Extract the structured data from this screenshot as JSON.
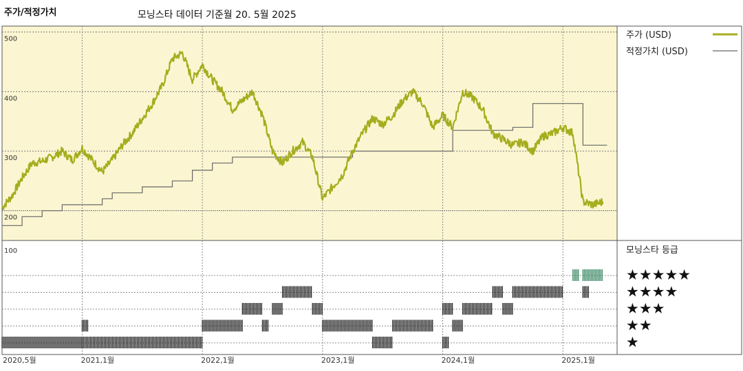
{
  "header": {
    "title": "주가/적정가치",
    "subtitle": "모닝스타 데이터 기준월 20. 5월 2025"
  },
  "legend": {
    "price_label": "주가 (USD)",
    "fair_label": "적정가치 (USD)",
    "rating_title": "모닝스타 등급"
  },
  "colors": {
    "price": "#a5ad1e",
    "fair": "#666666",
    "panel_bg": "#fbf6d1",
    "rating_dark": "#222222",
    "rating_five": "#3d8a66"
  },
  "chart_data": {
    "type": "line",
    "title": "주가/적정가치",
    "ylim": [
      150,
      510
    ],
    "yticks": [
      "500",
      "400",
      "300",
      "200"
    ],
    "xticks": [
      "2020,5월",
      "2021,1월",
      "2022,1월",
      "2023,1월",
      "2024,1월",
      "2025,1월"
    ],
    "xtick_dates": [
      "2020-05",
      "2021-01",
      "2022-01",
      "2023-01",
      "2024-01",
      "2025-01"
    ],
    "x_range": [
      "2020-05",
      "2025-05"
    ],
    "series": [
      {
        "name": "주가 (USD)",
        "points": [
          [
            "2020-05",
            205
          ],
          [
            "2020-06",
            225
          ],
          [
            "2020-07",
            255
          ],
          [
            "2020-08",
            280
          ],
          [
            "2020-09",
            283
          ],
          [
            "2020-10",
            290
          ],
          [
            "2020-11",
            300
          ],
          [
            "2020-12",
            285
          ],
          [
            "2021-01",
            305
          ],
          [
            "2021-02",
            285
          ],
          [
            "2021-03",
            265
          ],
          [
            "2021-04",
            285
          ],
          [
            "2021-05",
            310
          ],
          [
            "2021-06",
            330
          ],
          [
            "2021-07",
            355
          ],
          [
            "2021-08",
            380
          ],
          [
            "2021-09",
            410
          ],
          [
            "2021-10",
            455
          ],
          [
            "2021-11",
            465
          ],
          [
            "2021-12",
            420
          ],
          [
            "2022-01",
            445
          ],
          [
            "2022-02",
            420
          ],
          [
            "2022-03",
            400
          ],
          [
            "2022-04",
            370
          ],
          [
            "2022-05",
            385
          ],
          [
            "2022-06",
            400
          ],
          [
            "2022-07",
            360
          ],
          [
            "2022-08",
            300
          ],
          [
            "2022-09",
            280
          ],
          [
            "2022-10",
            300
          ],
          [
            "2022-11",
            315
          ],
          [
            "2022-12",
            290
          ],
          [
            "2023-01",
            220
          ],
          [
            "2023-02",
            240
          ],
          [
            "2023-03",
            260
          ],
          [
            "2023-04",
            300
          ],
          [
            "2023-05",
            330
          ],
          [
            "2023-06",
            355
          ],
          [
            "2023-07",
            345
          ],
          [
            "2023-08",
            360
          ],
          [
            "2023-09",
            385
          ],
          [
            "2023-10",
            400
          ],
          [
            "2023-11",
            380
          ],
          [
            "2023-12",
            340
          ],
          [
            "2024-01",
            360
          ],
          [
            "2024-02",
            340
          ],
          [
            "2024-03",
            400
          ],
          [
            "2024-04",
            390
          ],
          [
            "2024-05",
            370
          ],
          [
            "2024-06",
            330
          ],
          [
            "2024-07",
            320
          ],
          [
            "2024-08",
            310
          ],
          [
            "2024-09",
            315
          ],
          [
            "2024-10",
            300
          ],
          [
            "2024-11",
            325
          ],
          [
            "2024-12",
            330
          ],
          [
            "2025-01",
            340
          ],
          [
            "2025-02",
            330
          ],
          [
            "2025-03",
            215
          ],
          [
            "2025-04",
            210
          ],
          [
            "2025-05",
            215
          ]
        ]
      },
      {
        "name": "적정가치 (USD)",
        "steps": [
          [
            "2020-05",
            175
          ],
          [
            "2020-07",
            190
          ],
          [
            "2020-09",
            200
          ],
          [
            "2020-11",
            210
          ],
          [
            "2021-03",
            220
          ],
          [
            "2021-04",
            230
          ],
          [
            "2021-07",
            240
          ],
          [
            "2021-10",
            250
          ],
          [
            "2021-12",
            268
          ],
          [
            "2022-02",
            280
          ],
          [
            "2022-04",
            290
          ],
          [
            "2023-01",
            290
          ],
          [
            "2023-04",
            300
          ],
          [
            "2023-11",
            300
          ],
          [
            "2024-02",
            335
          ],
          [
            "2024-08",
            340
          ],
          [
            "2024-10",
            380
          ],
          [
            "2025-03",
            310
          ],
          [
            "2025-05",
            310
          ]
        ]
      }
    ],
    "rating": {
      "title": "모닝스타 등급",
      "yticks": [
        "100"
      ],
      "levels": [
        "★★★★★",
        "★★★★",
        "★★★",
        "★★",
        "★"
      ],
      "periods": [
        {
          "stars": 1,
          "from": "2020-05",
          "to": "2021-01"
        },
        {
          "stars": 2,
          "from": "2021-01",
          "to": "2021-01"
        },
        {
          "stars": 1,
          "from": "2021-01",
          "to": "2022-01"
        },
        {
          "stars": 2,
          "from": "2022-01",
          "to": "2022-05"
        },
        {
          "stars": 3,
          "from": "2022-05",
          "to": "2022-07"
        },
        {
          "stars": 2,
          "from": "2022-07",
          "to": "2022-07"
        },
        {
          "stars": 3,
          "from": "2022-08",
          "to": "2022-09"
        },
        {
          "stars": 4,
          "from": "2022-09",
          "to": "2022-12"
        },
        {
          "stars": 3,
          "from": "2022-12",
          "to": "2023-01"
        },
        {
          "stars": 2,
          "from": "2023-01",
          "to": "2023-06"
        },
        {
          "stars": 1,
          "from": "2023-06",
          "to": "2023-08"
        },
        {
          "stars": 2,
          "from": "2023-08",
          "to": "2023-12"
        },
        {
          "stars": 1,
          "from": "2024-01",
          "to": "2024-01"
        },
        {
          "stars": 3,
          "from": "2024-01",
          "to": "2024-02"
        },
        {
          "stars": 2,
          "from": "2024-02",
          "to": "2024-03"
        },
        {
          "stars": 3,
          "from": "2024-03",
          "to": "2024-06"
        },
        {
          "stars": 4,
          "from": "2024-06",
          "to": "2024-07"
        },
        {
          "stars": 3,
          "from": "2024-07",
          "to": "2024-08"
        },
        {
          "stars": 4,
          "from": "2024-08",
          "to": "2025-01"
        },
        {
          "stars": 5,
          "from": "2025-02",
          "to": "2025-02"
        },
        {
          "stars": 4,
          "from": "2025-03",
          "to": "2025-03"
        },
        {
          "stars": 5,
          "from": "2025-03",
          "to": "2025-05"
        }
      ]
    }
  }
}
